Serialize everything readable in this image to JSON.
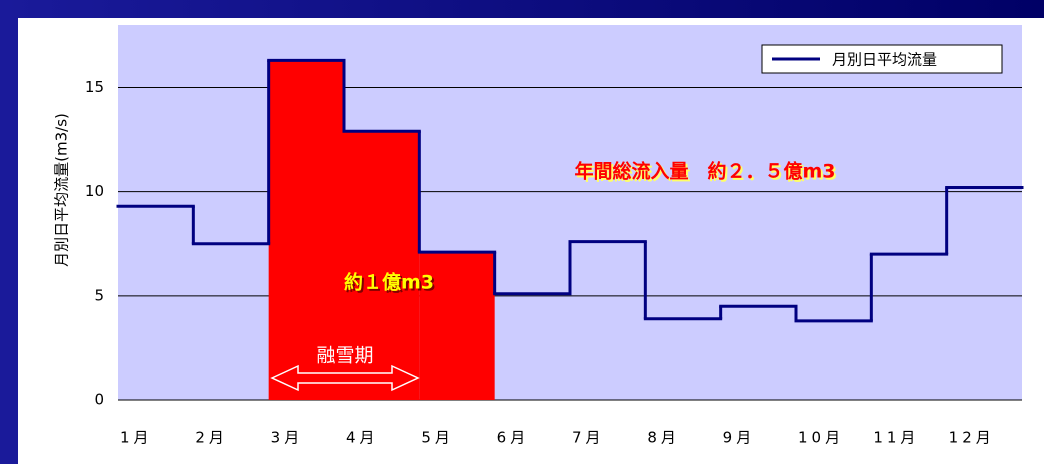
{
  "chart_data": {
    "type": "step",
    "ylabel": "月別日平均流量(m3/s)",
    "categories": [
      "1月",
      "2月",
      "3月",
      "4月",
      "5月",
      "6月",
      "7月",
      "8月",
      "9月",
      "10月",
      "11月",
      "12月"
    ],
    "series": [
      {
        "name": "月別日平均流量",
        "color": "#000080",
        "values": [
          9.3,
          7.5,
          16.3,
          12.9,
          7.1,
          5.1,
          7.6,
          3.9,
          4.5,
          3.8,
          7.0,
          10.2
        ]
      }
    ],
    "ylim": [
      0,
      18
    ],
    "yticks": [
      0,
      5,
      10,
      15
    ],
    "grid": true,
    "legend": "top-right",
    "highlight": [
      2,
      3,
      4
    ],
    "highlight_color": "#ff0000",
    "annotations": [
      "年間総流入量　約２．５億m3",
      "約１億m3",
      "融雪期"
    ]
  }
}
